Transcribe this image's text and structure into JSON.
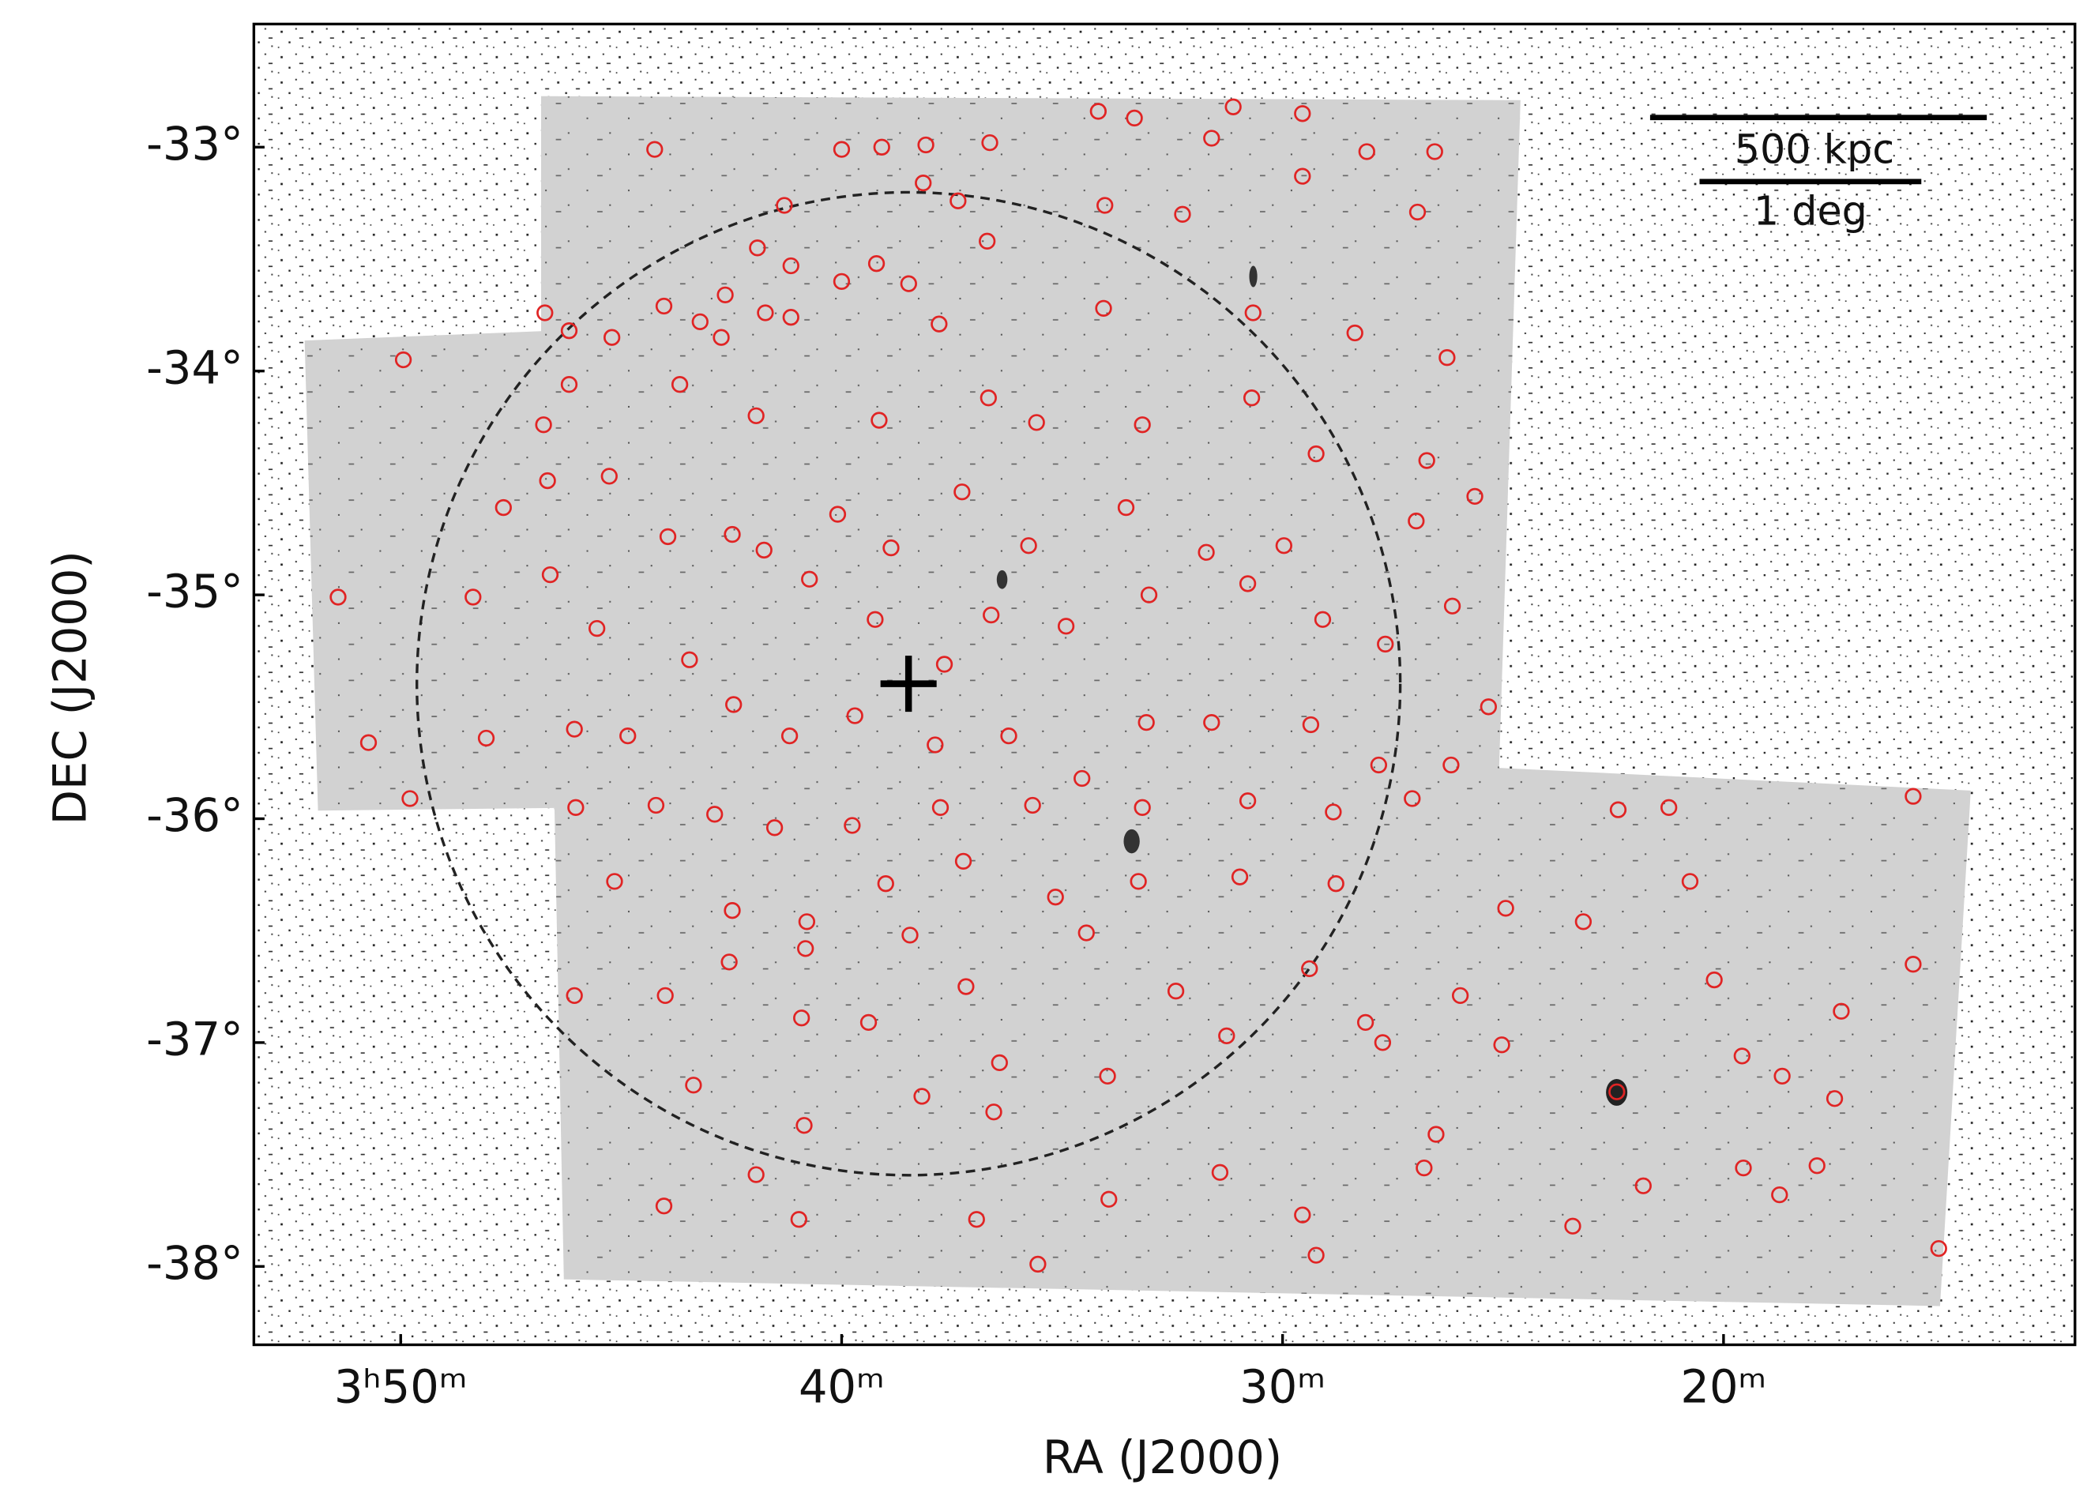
{
  "chart_data": {
    "type": "scatter",
    "x_label": "RA (J2000)",
    "y_label": "DEC (J2000)",
    "annotations": [
      "500 kpc",
      "1 deg"
    ],
    "color": "#e02424",
    "xlim": [
      53.33,
      12.03
    ],
    "ylim": [
      -38.35,
      -32.45
    ],
    "xticks": [
      {
        "value": 50,
        "label": "3ʰ50ᵐ"
      },
      {
        "value": 40,
        "label": "40ᵐ"
      },
      {
        "value": 30,
        "label": "30ᵐ"
      },
      {
        "value": 20,
        "label": "20ᵐ"
      }
    ],
    "yticks": [
      {
        "value": -33,
        "label": "-33°"
      },
      {
        "value": -34,
        "label": "-34°"
      },
      {
        "value": -35,
        "label": "-35°"
      },
      {
        "value": -36,
        "label": "-36°"
      },
      {
        "value": -37,
        "label": "-37°"
      },
      {
        "value": -38,
        "label": "-38°"
      }
    ],
    "x": [
      44.24,
      40.0,
      39.09,
      38.09,
      36.64,
      34.18,
      33.36,
      31.12,
      29.55,
      26.55,
      28.09,
      31.61,
      38.15,
      37.36,
      41.3,
      34.03,
      32.27,
      29.55,
      26.94,
      36.7,
      41.91,
      41.15,
      39.21,
      40.0,
      38.48,
      42.64,
      43.21,
      44.03,
      41.73,
      41.15,
      46.73,
      46.18,
      45.21,
      42.73,
      37.79,
      34.06,
      30.67,
      28.36,
      26.27,
      49.94,
      46.18,
      46.76,
      43.67,
      41.94,
      39.15,
      36.67,
      35.58,
      33.18,
      30.7,
      29.24,
      26.73,
      25.64,
      46.67,
      47.67,
      45.27,
      43.94,
      42.48,
      40.09,
      38.88,
      37.27,
      35.76,
      33.55,
      31.73,
      29.97,
      26.97,
      51.42,
      48.36,
      46.61,
      45.55,
      43.45,
      41.76,
      40.73,
      39.24,
      37.67,
      36.61,
      34.91,
      33.03,
      30.79,
      29.09,
      27.67,
      26.15,
      25.33,
      50.73,
      49.79,
      48.06,
      46.06,
      44.85,
      42.45,
      41.18,
      39.7,
      37.88,
      36.21,
      34.55,
      33.09,
      31.61,
      29.36,
      27.82,
      26.18,
      46.03,
      44.21,
      42.88,
      41.52,
      39.76,
      37.76,
      35.67,
      33.18,
      30.79,
      28.85,
      27.06,
      45.15,
      42.48,
      40.79,
      39.0,
      37.24,
      35.15,
      33.27,
      30.97,
      28.79,
      46.06,
      44.0,
      42.55,
      40.82,
      38.45,
      37.18,
      34.45,
      32.42,
      29.39,
      28.12,
      43.36,
      40.91,
      39.39,
      36.42,
      33.97,
      31.27,
      27.73,
      41.94,
      40.85,
      38.18,
      36.55,
      33.94,
      31.42,
      29.55,
      26.52,
      44.03,
      40.97,
      36.94,
      35.55,
      29.24,
      26.79,
      25.03,
      25.97,
      24.94,
      23.18,
      22.42,
      21.82,
      23.42,
      22.39,
      21.24,
      20.76,
      20.21,
      19.58,
      18.67,
      19.55,
      18.73,
      17.88,
      17.48,
      17.33,
      15.7,
      15.7,
      15.12
    ],
    "values": [
      -33.01,
      -33.01,
      -33.0,
      -32.99,
      -32.98,
      -32.84,
      -32.87,
      -32.82,
      -32.85,
      -33.02,
      -33.02,
      -32.96,
      -33.16,
      -33.24,
      -33.26,
      -33.26,
      -33.3,
      -33.13,
      -33.29,
      -33.42,
      -33.45,
      -33.53,
      -33.52,
      -33.6,
      -33.61,
      -33.66,
      -33.78,
      -33.71,
      -33.74,
      -33.76,
      -33.74,
      -33.82,
      -33.85,
      -33.85,
      -33.79,
      -33.72,
      -33.74,
      -33.83,
      -33.94,
      -33.95,
      -34.06,
      -34.24,
      -34.06,
      -34.2,
      -34.22,
      -34.12,
      -34.23,
      -34.24,
      -34.12,
      -34.37,
      -34.4,
      -34.56,
      -34.49,
      -34.61,
      -34.47,
      -34.74,
      -34.73,
      -34.64,
      -34.79,
      -34.54,
      -34.78,
      -34.61,
      -34.81,
      -34.78,
      -34.67,
      -35.01,
      -35.01,
      -34.91,
      -35.15,
      -35.29,
      -34.8,
      -34.93,
      -35.11,
      -35.31,
      -35.09,
      -35.14,
      -35.0,
      -34.95,
      -35.11,
      -35.22,
      -35.05,
      -35.5,
      -35.66,
      -35.91,
      -35.64,
      -35.6,
      -35.63,
      -35.49,
      -35.63,
      -35.54,
      -35.67,
      -35.63,
      -35.82,
      -35.57,
      -35.57,
      -35.58,
      -35.76,
      -35.76,
      -35.95,
      -35.94,
      -35.98,
      -36.04,
      -36.03,
      -35.95,
      -35.94,
      -35.95,
      -35.92,
      -35.97,
      -35.91,
      -36.28,
      -36.41,
      -36.46,
      -36.29,
      -36.19,
      -36.35,
      -36.28,
      -36.26,
      -36.29,
      -36.79,
      -36.79,
      -36.64,
      -36.58,
      -36.52,
      -36.75,
      -36.51,
      -36.77,
      -36.67,
      -36.91,
      -37.19,
      -36.89,
      -36.91,
      -37.09,
      -37.15,
      -36.97,
      -37.0,
      -37.59,
      -37.37,
      -37.24,
      -37.31,
      -37.7,
      -37.58,
      -37.77,
      -37.41,
      -37.73,
      -37.79,
      -37.79,
      -37.99,
      -37.95,
      -37.56,
      -37.01,
      -36.79,
      -36.4,
      -36.46,
      -37.22,
      -37.64,
      -37.82,
      -35.96,
      -35.95,
      -36.28,
      -36.72,
      -37.06,
      -37.15,
      -37.56,
      -37.68,
      -37.55,
      -37.25,
      -36.86,
      -35.9,
      -36.65,
      -37.92
    ]
  }
}
